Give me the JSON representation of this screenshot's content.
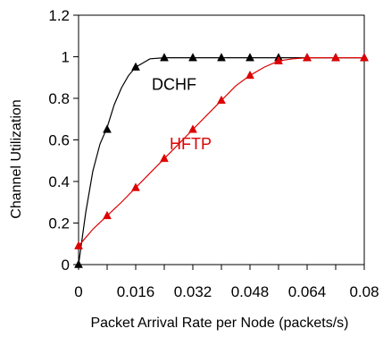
{
  "chart_data": {
    "type": "line",
    "title": "",
    "xlabel": "Packet Arrival Rate per Node (packets/s)",
    "ylabel": "Channel Utilization",
    "xlim": [
      0,
      0.08
    ],
    "ylim": [
      0,
      1.2
    ],
    "x_ticks": [
      0,
      0.016,
      0.032,
      0.048,
      0.064,
      0.08
    ],
    "x_tick_labels": [
      "0",
      "0.016",
      "0.032",
      "0.048",
      "0.064",
      "0.08"
    ],
    "y_ticks": [
      0,
      0.2,
      0.4,
      0.6,
      0.8,
      1,
      1.2
    ],
    "y_tick_labels": [
      "0",
      "0.2",
      "0.4",
      "0.6",
      "0.8",
      "1",
      "1.2"
    ],
    "grid": false,
    "legend": "inline labels",
    "series": [
      {
        "name": "DCHF",
        "color": "#000000",
        "marker": "triangle",
        "curve_x": [
          0,
          0.002,
          0.004,
          0.006,
          0.008,
          0.01,
          0.012,
          0.014,
          0.016,
          0.018,
          0.02,
          0.024,
          0.032,
          0.04,
          0.048,
          0.056,
          0.064,
          0.072,
          0.08
        ],
        "curve_y": [
          0.0,
          0.25,
          0.45,
          0.58,
          0.66,
          0.77,
          0.85,
          0.91,
          0.95,
          0.97,
          0.99,
          0.995,
          0.995,
          0.995,
          0.995,
          0.995,
          0.995,
          0.995,
          0.995
        ],
        "points_x": [
          0,
          0.008,
          0.016,
          0.024,
          0.032,
          0.04,
          0.048,
          0.056,
          0.064,
          0.072,
          0.08
        ],
        "points_y": [
          0.0,
          0.65,
          0.95,
          0.995,
          0.995,
          0.995,
          0.995,
          0.995,
          0.995,
          0.995,
          0.995
        ]
      },
      {
        "name": "HFTP",
        "color": "#dd0000",
        "marker": "triangle",
        "curve_x": [
          0,
          0.004,
          0.008,
          0.012,
          0.016,
          0.02,
          0.024,
          0.028,
          0.032,
          0.036,
          0.04,
          0.044,
          0.048,
          0.052,
          0.056,
          0.06,
          0.064,
          0.072,
          0.08
        ],
        "curve_y": [
          0.09,
          0.17,
          0.235,
          0.3,
          0.37,
          0.44,
          0.51,
          0.58,
          0.65,
          0.72,
          0.79,
          0.86,
          0.91,
          0.95,
          0.98,
          0.99,
          0.995,
          0.995,
          0.995
        ],
        "points_x": [
          0,
          0.008,
          0.016,
          0.024,
          0.032,
          0.04,
          0.048,
          0.056,
          0.064,
          0.072,
          0.08
        ],
        "points_y": [
          0.09,
          0.235,
          0.37,
          0.51,
          0.65,
          0.79,
          0.91,
          0.98,
          0.995,
          0.995,
          0.995
        ]
      }
    ],
    "annotations": [
      {
        "text": "DCHF",
        "x": 0.0205,
        "y": 0.84,
        "color": "#000000"
      },
      {
        "text": "HFTP",
        "x": 0.0255,
        "y": 0.555,
        "color": "#dd0000"
      }
    ]
  }
}
